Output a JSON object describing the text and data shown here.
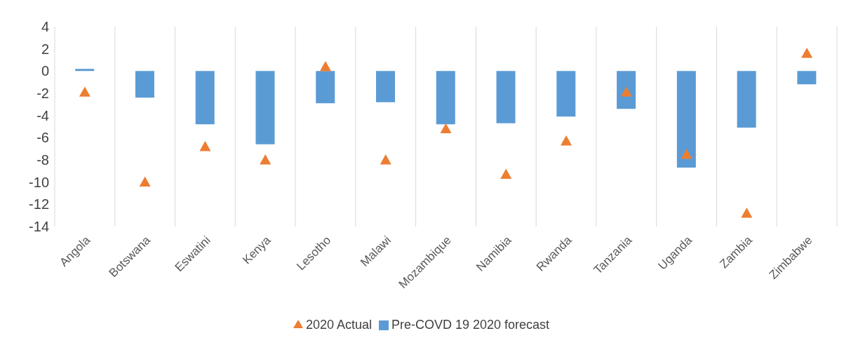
{
  "chart_data": {
    "type": "bar",
    "categories": [
      "Angola",
      "Botswana",
      "Eswatini",
      "Kenya",
      "Lesotho",
      "Malawi",
      "Mozambique",
      "Namibia",
      "Rwanda",
      "Tanzania",
      "Uganda",
      "Zambia",
      "Zimbabwe"
    ],
    "series": [
      {
        "name": "Pre-COVD 19 2020 forecast",
        "color": "#5b9bd5",
        "values": [
          0.2,
          -2.4,
          -4.8,
          -6.6,
          -2.9,
          -2.8,
          -4.8,
          -4.7,
          -4.1,
          -3.4,
          -8.7,
          -5.1,
          -1.2
        ]
      },
      {
        "name": "2020 Actual",
        "type": "scatter",
        "color": "#ed7d31",
        "values": [
          -1.9,
          -10.0,
          -6.8,
          -8.0,
          0.4,
          -8.0,
          -5.2,
          -9.3,
          -6.3,
          -1.9,
          -7.5,
          -12.8,
          1.6
        ]
      }
    ],
    "ylim": [
      -14,
      4
    ],
    "yticks": [
      -14,
      -12,
      -10,
      -8,
      -6,
      -4,
      -2,
      0,
      2,
      4
    ],
    "grid": "x",
    "legend": "bottom",
    "marker": "triangle"
  }
}
